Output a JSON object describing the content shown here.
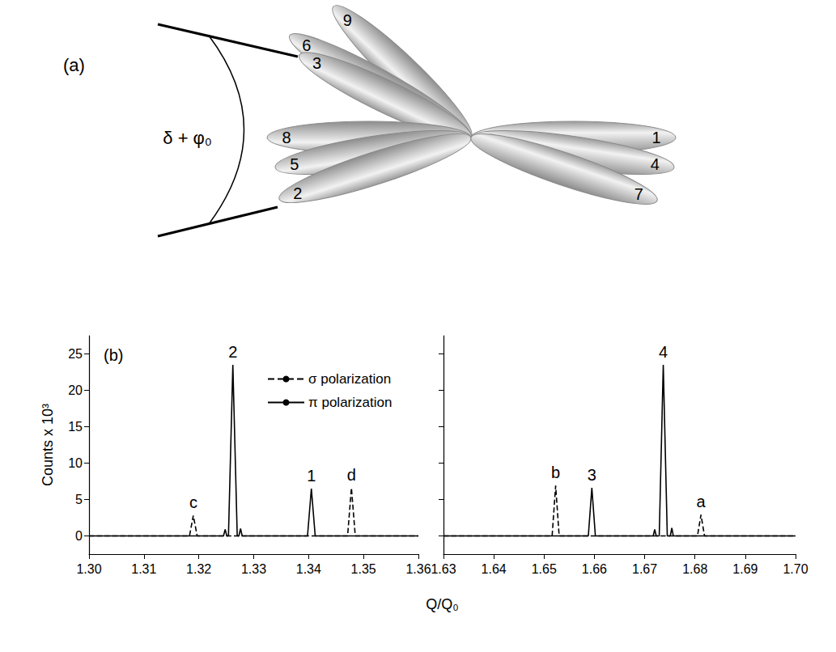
{
  "diagram": {
    "panel_label": "(a)",
    "angle_label": "δ + φ₀",
    "lobe_labels": [
      "1",
      "2",
      "3",
      "4",
      "5",
      "6",
      "7",
      "8",
      "9"
    ]
  },
  "chart_data": [
    {
      "type": "line",
      "panel_label": "(b)",
      "y_label": "Counts x 10³",
      "x_label": "Q/Q₀",
      "xlim": [
        1.3,
        1.36
      ],
      "xticks": [
        {
          "value": 1.3,
          "label": "1.30"
        },
        1.31,
        1.32,
        1.33,
        1.34,
        1.35,
        1.36
      ],
      "ylim": [
        -2.5,
        27.5
      ],
      "yticks": [
        0,
        5,
        10,
        15,
        20,
        25
      ],
      "legend": "top",
      "series": [
        {
          "name": "σ polarization",
          "color": "#000000",
          "line_style": "dashed",
          "x": [
            1.3,
            1.3183,
            1.319,
            1.3197,
            1.3471,
            1.3478,
            1.3485,
            1.36
          ],
          "values": [
            0,
            0,
            2.8,
            0,
            0,
            6.6,
            0,
            0
          ]
        },
        {
          "name": "π polarization",
          "color": "#000000",
          "line_style": "solid",
          "x": [
            1.3,
            1.3245,
            1.3248,
            1.3251,
            1.3254,
            1.3262,
            1.327,
            1.3273,
            1.3276,
            1.3279,
            1.3398,
            1.3405,
            1.3412,
            1.36
          ],
          "values": [
            0,
            0,
            0.9,
            0,
            0,
            23.5,
            0,
            0,
            1.0,
            0,
            0,
            6.5,
            0,
            0
          ]
        }
      ],
      "annotations": [
        {
          "text": "c",
          "x": 1.319,
          "y": 2.8
        },
        {
          "text": "2",
          "x": 1.3262,
          "y": 23.5
        },
        {
          "text": "1",
          "x": 1.3405,
          "y": 6.5
        },
        {
          "text": "d",
          "x": 1.3478,
          "y": 6.6
        }
      ]
    },
    {
      "type": "line",
      "xlim": [
        1.63,
        1.7
      ],
      "xticks": [
        1.63,
        1.64,
        1.65,
        1.66,
        1.67,
        1.68,
        1.69,
        {
          "value": 1.7,
          "label": "1.70"
        }
      ],
      "ylim": [
        -2.5,
        27.5
      ],
      "yticks": [
        0,
        5,
        10,
        15,
        20,
        25
      ],
      "tick_labels": "x",
      "series": [
        {
          "name": "σ polarization",
          "color": "#000000",
          "line_style": "dashed",
          "x": [
            1.63,
            1.6516,
            1.6523,
            1.653,
            1.6805,
            1.6812,
            1.6819,
            1.7
          ],
          "values": [
            0,
            0,
            6.9,
            0,
            0,
            2.9,
            0,
            0
          ]
        },
        {
          "name": "π polarization",
          "color": "#000000",
          "line_style": "solid",
          "x": [
            1.63,
            1.6588,
            1.6595,
            1.6602,
            1.6717,
            1.672,
            1.6723,
            1.6729,
            1.6737,
            1.6745,
            1.6751,
            1.6754,
            1.6757,
            1.7
          ],
          "values": [
            0,
            0,
            6.6,
            0,
            0,
            0.9,
            0,
            0,
            23.5,
            0,
            0,
            1.1,
            0,
            0
          ]
        }
      ],
      "annotations": [
        {
          "text": "b",
          "x": 1.6523,
          "y": 6.9
        },
        {
          "text": "3",
          "x": 1.6595,
          "y": 6.6
        },
        {
          "text": "4",
          "x": 1.6737,
          "y": 23.5
        },
        {
          "text": "a",
          "x": 1.6812,
          "y": 2.9
        }
      ]
    }
  ]
}
